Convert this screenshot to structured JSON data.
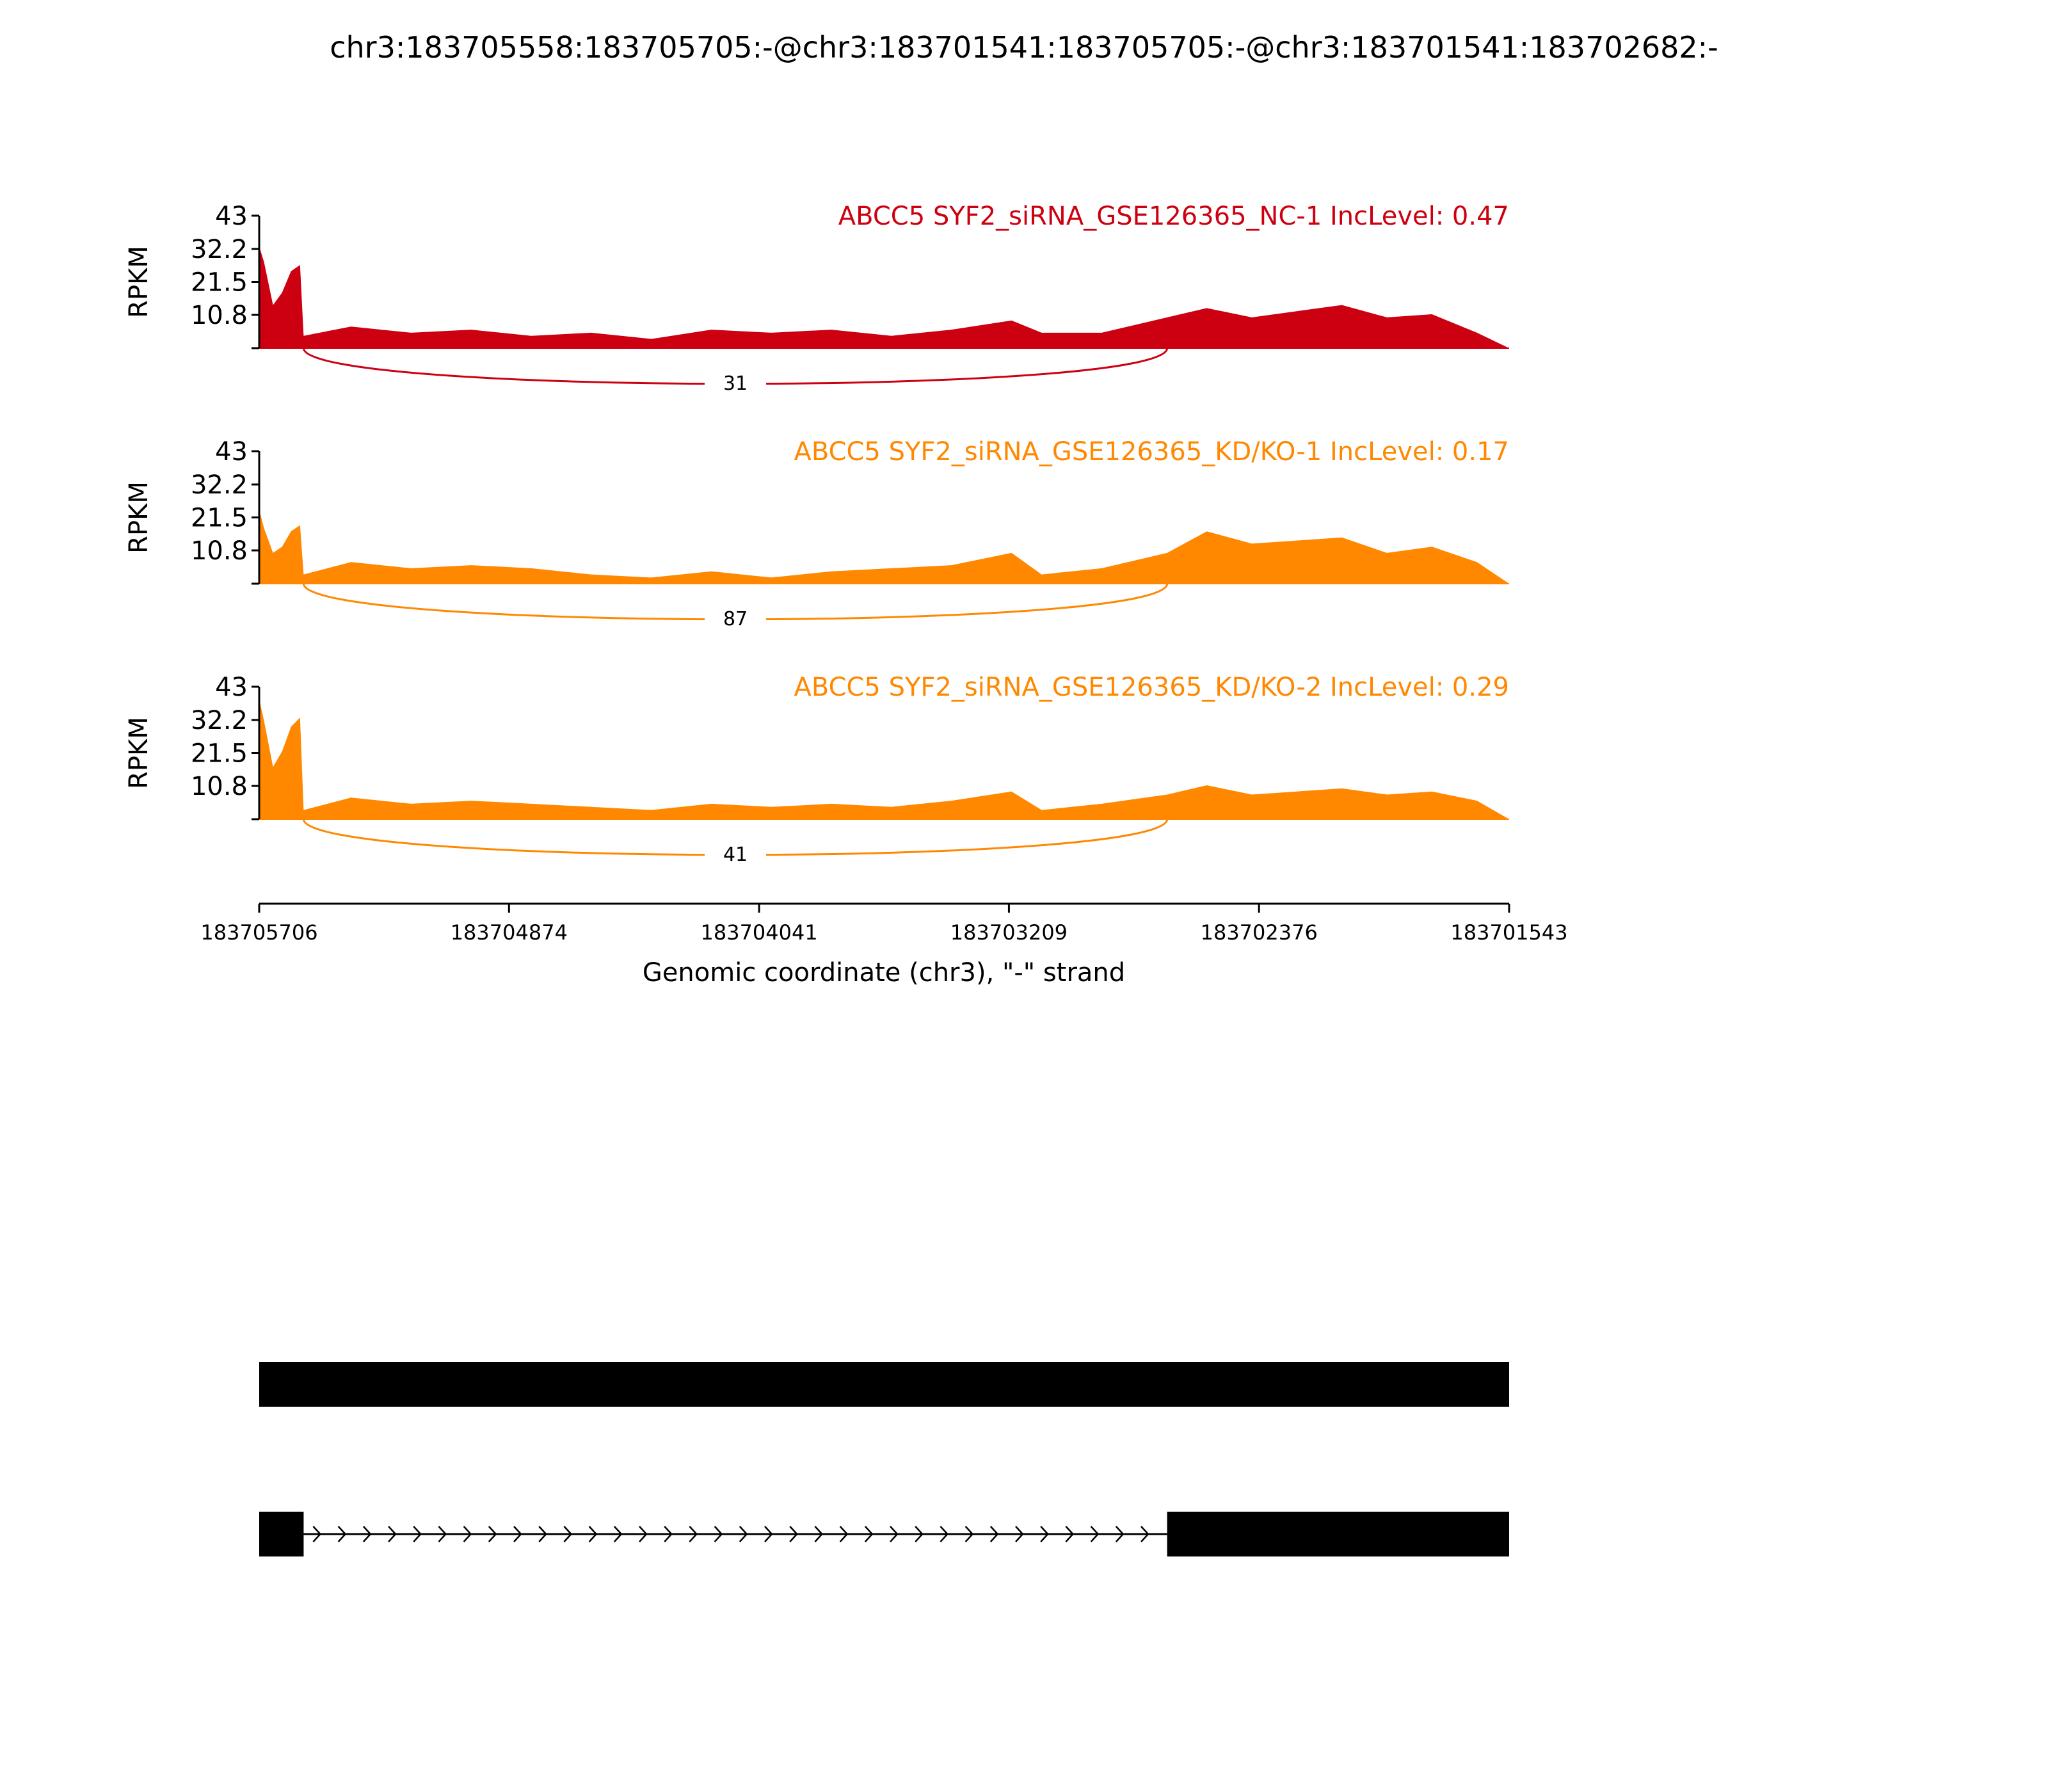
{
  "chart_data": {
    "type": "area",
    "title": "chr3:183705558:183705705:-@chr3:183701541:183705705:-@chr3:183701541:183702682:-",
    "xlabel": "Genomic coordinate (chr3), \"-\" strand",
    "ylabel": "RPKM",
    "x_ticks": [
      "183705706",
      "183704874",
      "183704041",
      "183703209",
      "183702376",
      "183701543"
    ],
    "x_range": [
      183705706,
      183701543
    ],
    "y_ticks": [
      "43",
      "32.2",
      "21.5",
      "10.8"
    ],
    "ylim": [
      0,
      43
    ],
    "grid": false,
    "exon_ends": [
      183705558,
      183702682
    ],
    "coverage_x": [
      183705706,
      183705690,
      183705660,
      183705630,
      183705600,
      183705570,
      183705558,
      183705400,
      183705200,
      183705000,
      183704800,
      183704600,
      183704400,
      183704200,
      183704000,
      183703800,
      183703600,
      183703400,
      183703200,
      183703100,
      183702900,
      183702682,
      183702550,
      183702400,
      183702250,
      183702100,
      183701950,
      183701800,
      183701650,
      183701543
    ],
    "series": [
      {
        "name": "ABCC5 SYF2_siRNA_GSE126365_NC-1 IncLevel: 0.47",
        "color": "#cc0011",
        "sashimi_count": "31",
        "values": [
          33,
          28,
          14,
          18,
          25,
          27,
          4,
          7,
          5,
          6,
          4,
          5,
          3,
          6,
          5,
          6,
          4,
          6,
          9,
          5,
          5,
          10,
          13,
          10,
          12,
          14,
          10,
          11,
          5,
          0
        ]
      },
      {
        "name": "ABCC5 SYF2_siRNA_GSE126365_KD/KO-1 IncLevel: 0.17",
        "color": "#ff8800",
        "sashimi_count": "87",
        "values": [
          24,
          18,
          10,
          12,
          17,
          19,
          3,
          7,
          5,
          6,
          5,
          3,
          2,
          4,
          2,
          4,
          5,
          6,
          10,
          3,
          5,
          10,
          17,
          13,
          14,
          15,
          10,
          12,
          7,
          0
        ]
      },
      {
        "name": "ABCC5 SYF2_siRNA_GSE126365_KD/KO-2 IncLevel: 0.29",
        "color": "#ff8800",
        "sashimi_count": "41",
        "values": [
          39,
          32,
          17,
          22,
          30,
          33,
          3,
          7,
          5,
          6,
          5,
          4,
          3,
          5,
          4,
          5,
          4,
          6,
          9,
          3,
          5,
          8,
          11,
          8,
          9,
          10,
          8,
          9,
          6,
          0
        ]
      }
    ],
    "gene_models": [
      {
        "exons": [
          [
            183705706,
            183701543
          ]
        ]
      },
      {
        "exons": [
          [
            183705706,
            183705558
          ],
          [
            183702682,
            183701543
          ]
        ]
      }
    ]
  }
}
